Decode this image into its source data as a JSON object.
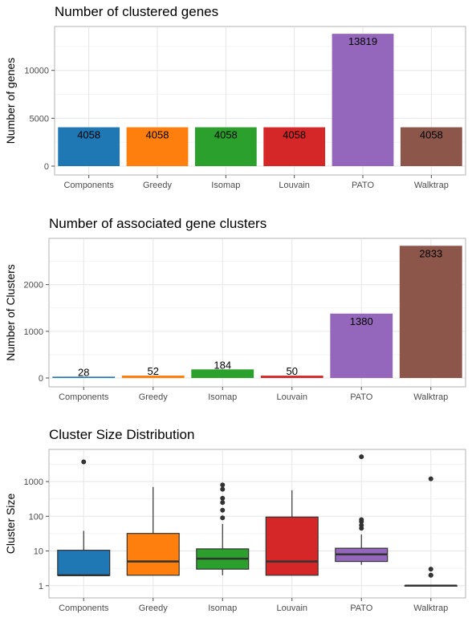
{
  "colors": {
    "Components": "#1f77b4",
    "Greedy": "#ff7f0e",
    "Isomap": "#2ca02c",
    "Louvain": "#d62728",
    "PATO": "#9467bd",
    "Walktrap": "#8c564b"
  },
  "chart_data": [
    {
      "type": "bar",
      "title": "Number of clustered genes",
      "ylabel": "Number of genes",
      "xlabel": "",
      "categories": [
        "Components",
        "Greedy",
        "Isomap",
        "Louvain",
        "PATO",
        "Walktrap"
      ],
      "values": [
        4058,
        4058,
        4058,
        4058,
        13819,
        4058
      ],
      "data_labels": [
        "4058",
        "4058",
        "4058",
        "4058",
        "13819",
        "4058"
      ],
      "ylim": [
        0,
        14500
      ],
      "yticks": [
        0,
        5000,
        10000
      ],
      "ytick_labels": [
        "0",
        "5000",
        "10000"
      ],
      "grid": true
    },
    {
      "type": "bar",
      "title": "Number of associated gene clusters",
      "ylabel": "Number of Clusters",
      "xlabel": "",
      "categories": [
        "Components",
        "Greedy",
        "Isomap",
        "Louvain",
        "PATO",
        "Walktrap"
      ],
      "values": [
        28,
        52,
        184,
        50,
        1380,
        2833
      ],
      "data_labels": [
        "28",
        "52",
        "184",
        "50",
        "1380",
        "2833"
      ],
      "ylim": [
        0,
        2975
      ],
      "yticks": [
        0,
        1000,
        2000
      ],
      "ytick_labels": [
        "0",
        "1000",
        "2000"
      ],
      "grid": true
    },
    {
      "type": "box",
      "title": "Cluster Size Distribution",
      "ylabel": "Cluster Size",
      "xlabel": "",
      "yscale": "log10",
      "categories": [
        "Components",
        "Greedy",
        "Isomap",
        "Louvain",
        "PATO",
        "Walktrap"
      ],
      "ylim": [
        0.8,
        8000
      ],
      "yticks": [
        1,
        10,
        100,
        1000
      ],
      "ytick_labels": [
        "1",
        "10",
        "100",
        "1000"
      ],
      "grid": true,
      "boxes": [
        {
          "name": "Components",
          "whisker_low": 2,
          "q1": 2,
          "median": 2,
          "q3": 10.5,
          "whisker_high": 38,
          "outliers": [
            3700
          ]
        },
        {
          "name": "Greedy",
          "whisker_low": 2,
          "q1": 2,
          "median": 5,
          "q3": 32,
          "whisker_high": 700,
          "outliers": []
        },
        {
          "name": "Isomap",
          "whisker_low": 2,
          "q1": 3,
          "median": 6,
          "q3": 11.5,
          "whisker_high": 60,
          "outliers": [
            90,
            150,
            250,
            330,
            600,
            800
          ]
        },
        {
          "name": "Louvain",
          "whisker_low": 2,
          "q1": 2,
          "median": 5,
          "q3": 95,
          "whisker_high": 560,
          "outliers": []
        },
        {
          "name": "PATO",
          "whisker_low": 4,
          "q1": 5,
          "median": 8,
          "q3": 12,
          "whisker_high": 30,
          "outliers": [
            45,
            55,
            70,
            80,
            5200
          ]
        },
        {
          "name": "Walktrap",
          "whisker_low": 1,
          "q1": 1,
          "median": 1,
          "q3": 1,
          "whisker_high": 1,
          "outliers": [
            2,
            2,
            3,
            1200
          ]
        }
      ]
    }
  ]
}
